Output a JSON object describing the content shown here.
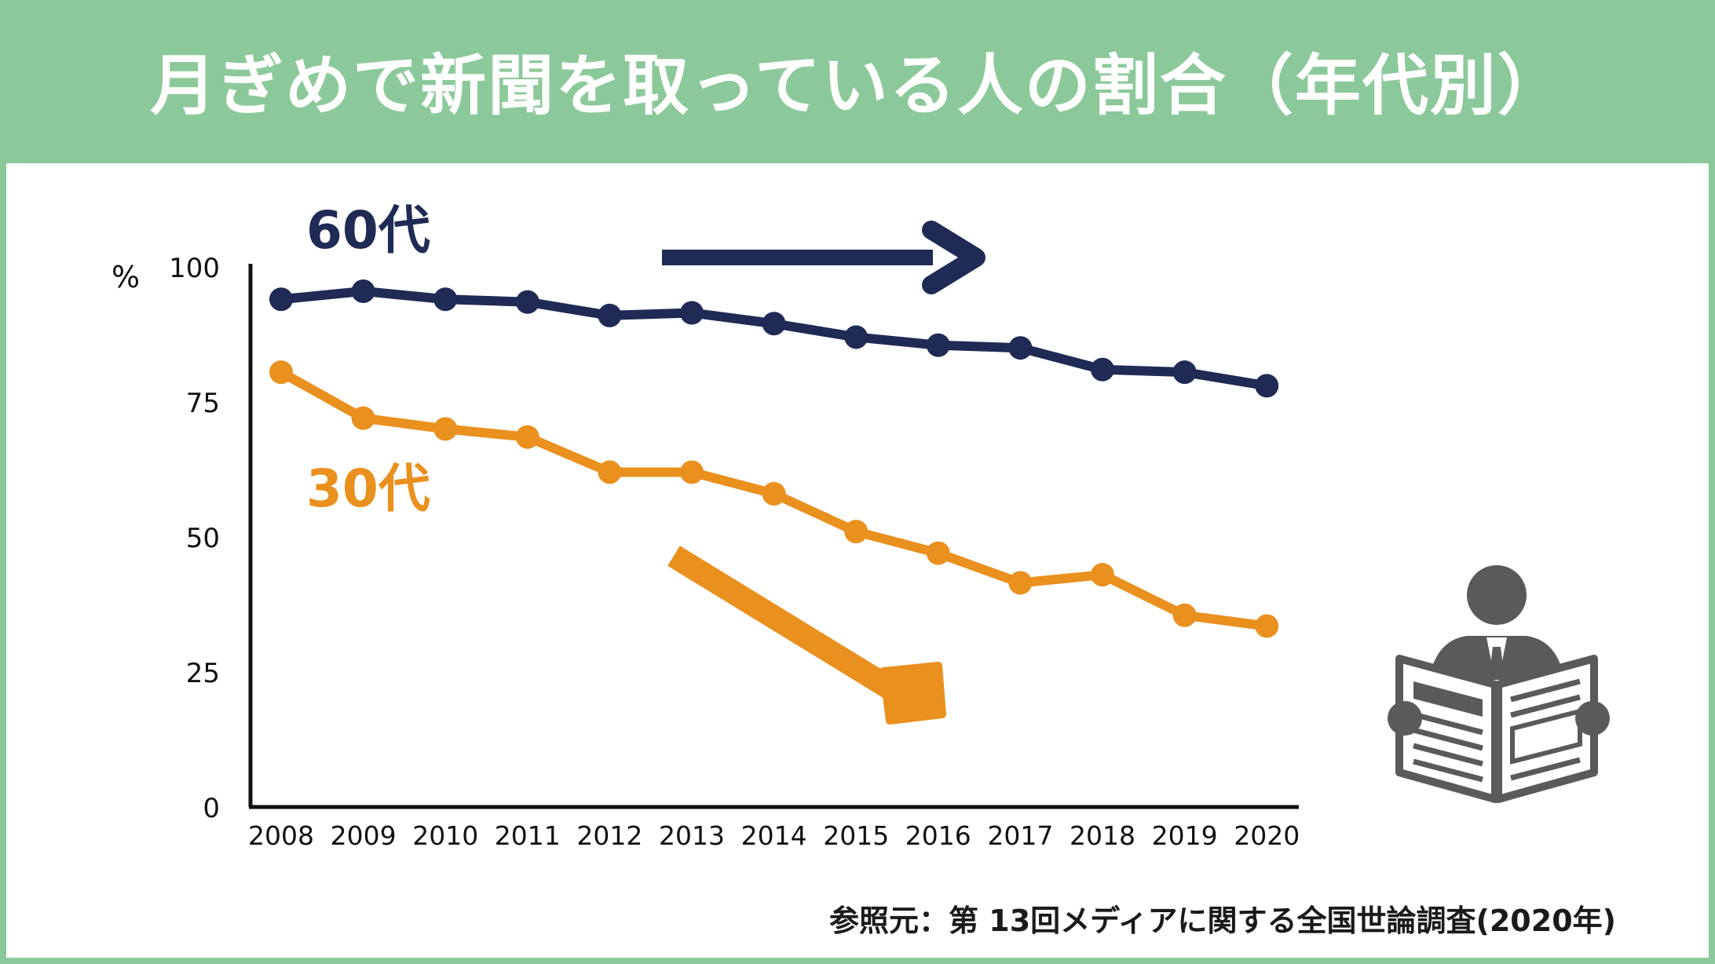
{
  "title": "月ぎめで新聞を取っている人の割合（年代別）",
  "source": "参照元：第 13回メディアに関する全国世論調査(2020年)",
  "colors": {
    "background": "#8cc99a",
    "panel": "#ffffff",
    "series_60": "#1f2a55",
    "series_30": "#ea901f",
    "icon": "#5a5a5a"
  },
  "icons": {
    "trend_flat": "arrow-right-icon",
    "trend_down": "arrow-down-right-icon",
    "reader": "newspaper-reader-icon"
  },
  "chart_data": {
    "type": "line",
    "title": "",
    "xlabel": "",
    "ylabel": "%",
    "ylim": [
      0,
      100
    ],
    "yticks": [
      0,
      25,
      50,
      75,
      100
    ],
    "grid": false,
    "legend": "inline-labels",
    "categories": [
      "2008",
      "2009",
      "2010",
      "2011",
      "2012",
      "2013",
      "2014",
      "2015",
      "2016",
      "2017",
      "2018",
      "2019",
      "2020"
    ],
    "series": [
      {
        "name": "60代",
        "color": "#1f2a55",
        "values": [
          94,
          95.5,
          94,
          93.5,
          91,
          91.5,
          89.5,
          87,
          85.5,
          85,
          81,
          80.5,
          78
        ]
      },
      {
        "name": "30代",
        "color": "#ea901f",
        "values": [
          80.5,
          72,
          70,
          68.5,
          62,
          62,
          58,
          51,
          47,
          41.5,
          43,
          35.5,
          33.5
        ]
      }
    ]
  }
}
